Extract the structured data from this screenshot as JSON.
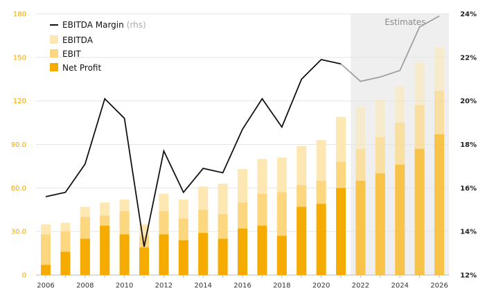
{
  "chart_data": {
    "type": "bar",
    "x": [
      2006,
      2007,
      2008,
      2009,
      2010,
      2011,
      2012,
      2013,
      2014,
      2015,
      2016,
      2017,
      2018,
      2019,
      2020,
      2021,
      2022,
      2023,
      2024,
      2025,
      2026
    ],
    "x_tick_labels": [
      "2006",
      "2008",
      "2010",
      "2012",
      "2014",
      "2016",
      "2018",
      "2020",
      "2022",
      "2024",
      "2026"
    ],
    "left_axis": {
      "ylim": [
        0,
        180
      ],
      "ticks": [
        0,
        30,
        60,
        90,
        120,
        150,
        180
      ],
      "tick_labels": [
        "0",
        "30.0",
        "60.0",
        "90.0",
        "120",
        "150",
        "180"
      ]
    },
    "right_axis": {
      "ylim": [
        12,
        24
      ],
      "ticks": [
        12,
        14,
        16,
        18,
        20,
        22,
        24
      ],
      "tick_labels": [
        "12%",
        "14%",
        "16%",
        "18%",
        "20%",
        "22%",
        "24%"
      ]
    },
    "series": [
      {
        "name": "EBITDA",
        "type": "bar",
        "axis": "left",
        "color": "#fde7b3",
        "values": [
          35,
          36,
          47,
          50,
          52,
          35,
          56,
          52,
          61,
          63,
          73,
          80,
          81,
          89,
          93,
          109,
          116,
          121,
          130,
          147,
          157
        ]
      },
      {
        "name": "EBIT",
        "type": "bar",
        "axis": "left",
        "color": "#fdd680",
        "values": [
          28,
          30,
          40,
          41,
          44,
          27,
          44,
          39,
          45,
          42,
          50,
          56,
          57,
          62,
          65,
          78,
          87,
          95,
          105,
          117,
          127
        ]
      },
      {
        "name": "Net Profit",
        "type": "bar",
        "axis": "left",
        "color": "#f5ab00",
        "values": [
          7,
          16,
          25,
          34,
          28,
          19,
          28,
          24,
          29,
          25,
          32,
          34,
          27,
          47,
          49,
          60,
          65,
          70,
          76,
          87,
          97
        ]
      },
      {
        "name": "EBITDA Margin",
        "legend_suffix": "(rhs)",
        "type": "line",
        "axis": "right",
        "color": "#111111",
        "values": [
          15.6,
          15.8,
          17.1,
          20.1,
          19.2,
          13.3,
          17.7,
          15.8,
          16.9,
          16.7,
          18.7,
          20.1,
          18.8,
          21.0,
          21.9,
          21.7,
          20.9,
          21.1,
          21.4,
          23.4,
          23.9
        ]
      }
    ],
    "estimates_from": 2022,
    "estimates_label": "Estimates",
    "legend_position": "top-left",
    "grid": true
  },
  "colors": {
    "estimate_shade": "#efefef",
    "estimate_line": "#9e9e9e",
    "grid": "#e5e5e5",
    "axis": "#bbbbbb"
  }
}
